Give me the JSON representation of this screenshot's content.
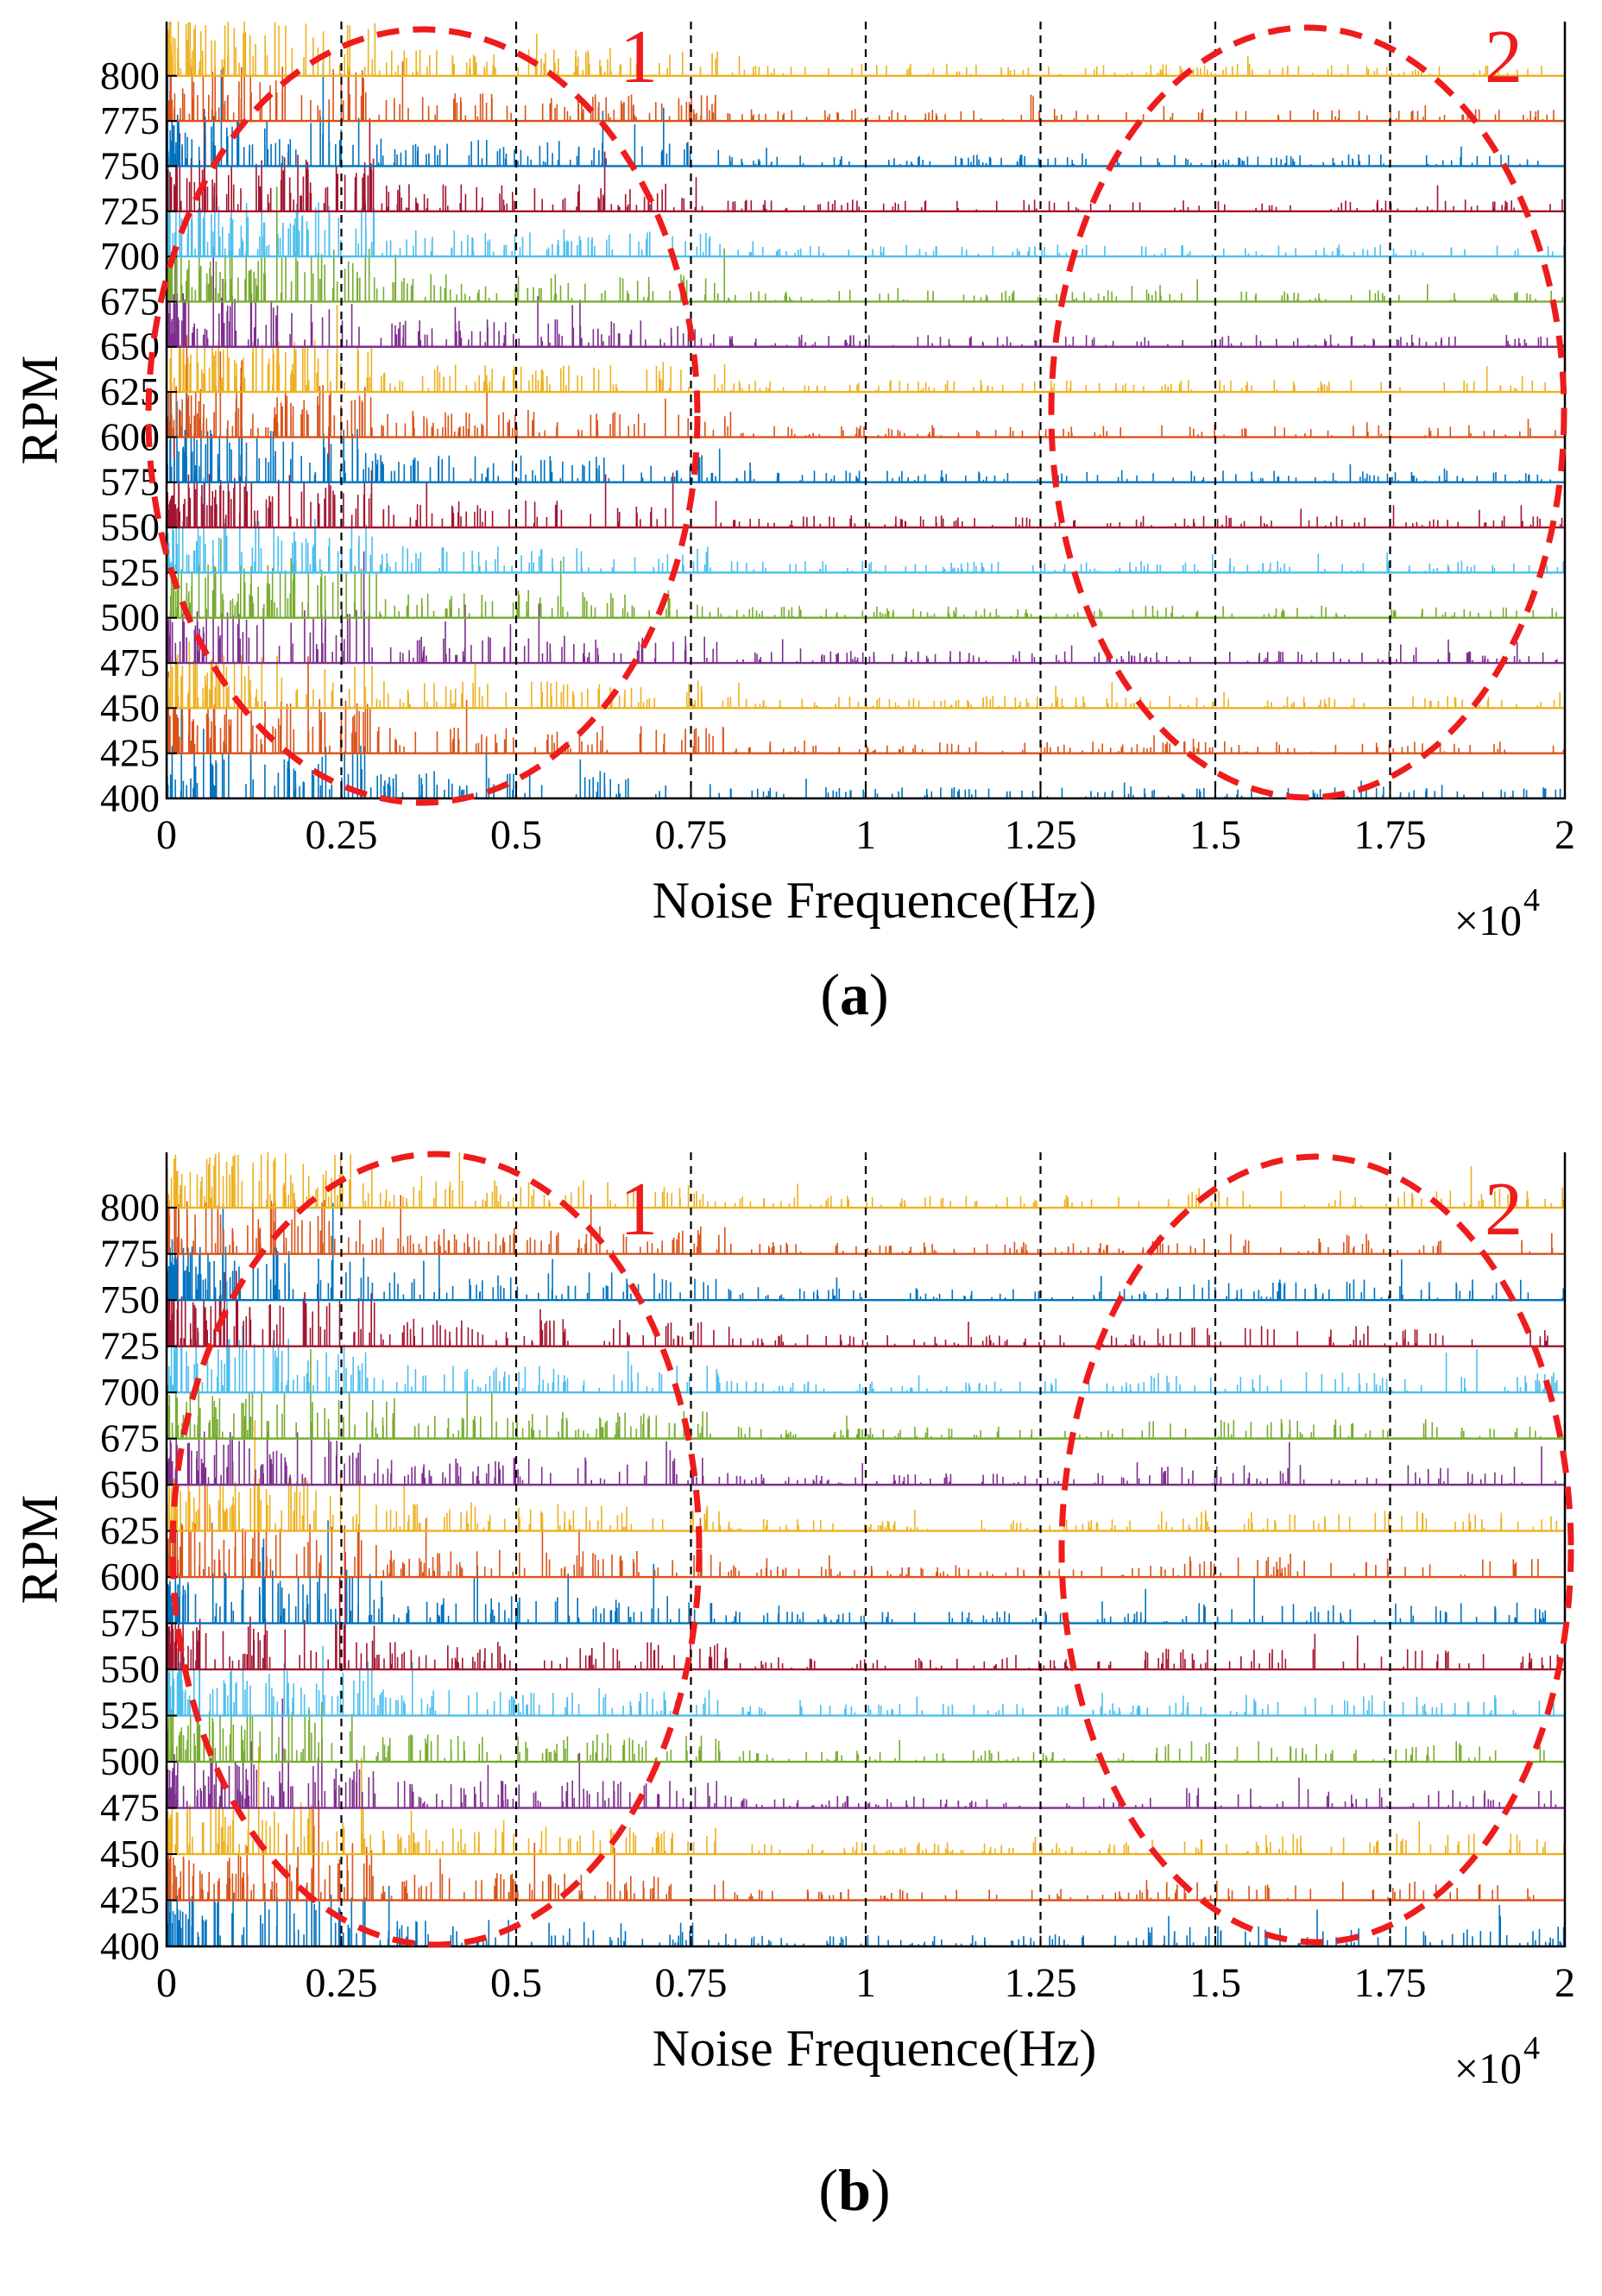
{
  "figure": {
    "panels": [
      {
        "label_open": "(",
        "label_letter": "a",
        "label_close": ")",
        "circle_labels": [
          "1",
          "2"
        ]
      },
      {
        "label_open": "(",
        "label_letter": "b",
        "label_close": ")",
        "circle_labels": [
          "1",
          "2"
        ]
      }
    ]
  },
  "chart_data": [
    {
      "type": "line",
      "subtype": "waterfall spectrum (stacked noise spectra per RPM)",
      "panel": "a",
      "title": "",
      "xlabel": "Noise Frequence(Hz)",
      "ylabel": "RPM",
      "x_exponent_label": "×10",
      "x_exponent_power": "4",
      "xlim": [
        0,
        2
      ],
      "x_ticks": [
        0,
        0.25,
        0.5,
        0.75,
        1,
        1.25,
        1.5,
        1.75,
        2
      ],
      "x_tick_labels": [
        "0",
        "0.25",
        "0.5",
        "0.75",
        "1",
        "1.25",
        "1.5",
        "1.75",
        "2"
      ],
      "ylim": [
        400,
        830
      ],
      "y_ticks": [
        400,
        425,
        450,
        475,
        500,
        525,
        550,
        575,
        600,
        625,
        650,
        675,
        700,
        725,
        750,
        775,
        800
      ],
      "y_tick_labels": [
        "400",
        "425",
        "450",
        "475",
        "500",
        "525",
        "550",
        "575",
        "600",
        "625",
        "650",
        "675",
        "700",
        "725",
        "750",
        "775",
        "800"
      ],
      "dashed_vertical_lines_x": [
        0.25,
        0.5,
        0.75,
        1,
        1.25,
        1.5,
        1.75
      ],
      "series_colors": [
        "#0072BD",
        "#D95319",
        "#EDB120",
        "#7E2F8E",
        "#77AC30",
        "#4DBEEE",
        "#A2142F"
      ],
      "annotations": [
        {
          "text": "1",
          "shape": "dashed ellipse",
          "x_range": [
            0,
            0.75
          ],
          "y_range": [
            400,
            830
          ],
          "color": "#ee1c1c"
        },
        {
          "text": "2",
          "shape": "dashed ellipse",
          "x_range": [
            1.25,
            2
          ],
          "y_range": [
            400,
            830
          ],
          "color": "#ee1c1c"
        }
      ]
    },
    {
      "type": "line",
      "subtype": "waterfall spectrum (stacked noise spectra per RPM)",
      "panel": "b",
      "title": "",
      "xlabel": "Noise Frequence(Hz)",
      "ylabel": "RPM",
      "x_exponent_label": "×10",
      "x_exponent_power": "4",
      "xlim": [
        0,
        2
      ],
      "x_ticks": [
        0,
        0.25,
        0.5,
        0.75,
        1,
        1.25,
        1.5,
        1.75,
        2
      ],
      "x_tick_labels": [
        "0",
        "0.25",
        "0.5",
        "0.75",
        "1",
        "1.25",
        "1.5",
        "1.75",
        "2"
      ],
      "ylim": [
        400,
        830
      ],
      "y_ticks": [
        400,
        425,
        450,
        475,
        500,
        525,
        550,
        575,
        600,
        625,
        650,
        675,
        700,
        725,
        750,
        775,
        800
      ],
      "y_tick_labels": [
        "400",
        "425",
        "450",
        "475",
        "500",
        "525",
        "550",
        "575",
        "600",
        "625",
        "650",
        "675",
        "700",
        "725",
        "750",
        "775",
        "800"
      ],
      "dashed_vertical_lines_x": [
        0.25,
        0.5,
        0.75,
        1,
        1.25,
        1.5,
        1.75
      ],
      "series_colors": [
        "#0072BD",
        "#D95319",
        "#EDB120",
        "#7E2F8E",
        "#77AC30",
        "#4DBEEE",
        "#A2142F"
      ],
      "annotations": [
        {
          "text": "1",
          "shape": "dashed ellipse",
          "x_range": [
            0,
            0.75
          ],
          "y_range": [
            400,
            830
          ],
          "color": "#ee1c1c"
        },
        {
          "text": "2",
          "shape": "dashed ellipse",
          "x_range": [
            1.3,
            2
          ],
          "y_range": [
            400,
            830
          ],
          "color": "#ee1c1c"
        }
      ]
    }
  ]
}
